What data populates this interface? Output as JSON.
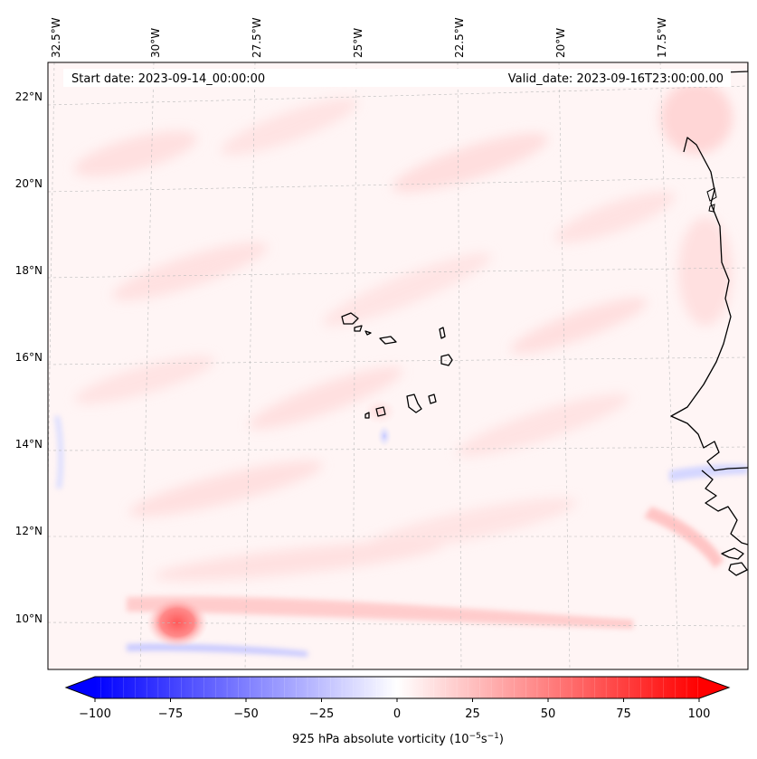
{
  "map": {
    "start_date": "Start date: 2023-09-14_00:00:00",
    "valid_date": "Valid_date: 2023-09-16T23:00:00.00",
    "top_labels": [
      "32.5°W",
      "30°W",
      "27.5°W",
      "25°W",
      "22.5°W",
      "20°W",
      "17.5°W"
    ],
    "left_labels": [
      "22°N",
      "20°N",
      "18°N",
      "16°N",
      "14°N",
      "12°N",
      "10°N"
    ],
    "field": "925 hPa absolute vorticity",
    "colors": {
      "negative_extreme": "#0000ff",
      "positive_extreme": "#ff0000",
      "neutral": "#ffffff",
      "coastline": "#000000"
    }
  },
  "colorbar": {
    "ticks": [
      "−100",
      "−75",
      "−50",
      "−25",
      "0",
      "25",
      "50",
      "75",
      "100"
    ],
    "tick_values": [
      -100,
      -75,
      -50,
      -25,
      0,
      25,
      50,
      75,
      100
    ],
    "min": -100,
    "max": 100,
    "label_prefix": "925 hPa absolute vorticity (10",
    "label_exp1": "−5",
    "label_mid": "s",
    "label_exp2": "−1",
    "label_suffix": ")"
  }
}
